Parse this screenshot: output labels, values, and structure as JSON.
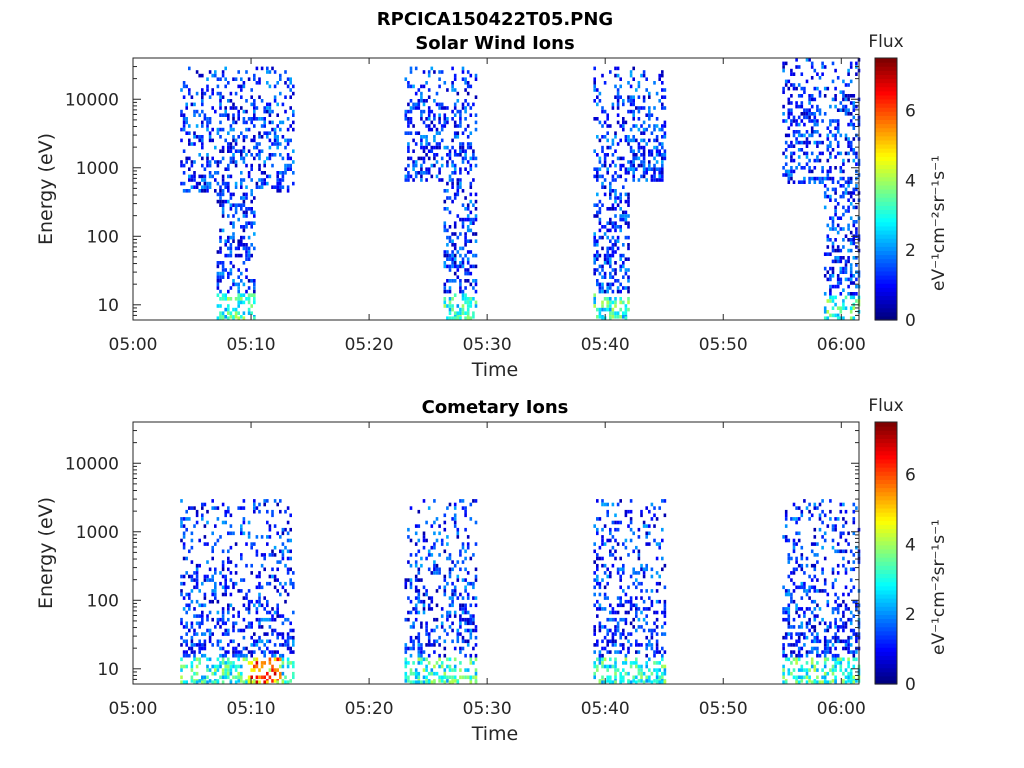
{
  "chart_data": {
    "title": "RPCICA150422T05.PNG",
    "panels": [
      {
        "type": "heatmap",
        "title": "Solar Wind Ions",
        "xlabel": "Time",
        "ylabel": "Energy (eV)",
        "x_ticks": [
          "05:00",
          "05:10",
          "05:20",
          "05:30",
          "05:40",
          "05:50",
          "06:00"
        ],
        "y_ticks": [
          "10",
          "100",
          "1000",
          "10000"
        ],
        "y_scale": "log",
        "ylim": [
          6,
          40000
        ],
        "xlim_minutes": [
          0,
          61.5
        ],
        "colorbar": {
          "label": "Flux",
          "units": "eV⁻¹cm⁻²sr⁻¹s⁻¹",
          "ticks": [
            "0",
            "2",
            "4",
            "6"
          ],
          "range": [
            0,
            7.5
          ]
        },
        "bursts": [
          {
            "start_min": 4.0,
            "end_min": 13.5,
            "emin": 470,
            "emax": 30000,
            "core_start": 7.0,
            "core_end": 10.2,
            "core_emin": 6,
            "intensity": "low"
          },
          {
            "start_min": 23.0,
            "end_min": 29.0,
            "emin": 650,
            "emax": 30000,
            "core_start": 26.2,
            "core_end": 29.0,
            "core_emin": 6,
            "intensity": "low"
          },
          {
            "start_min": 39.0,
            "end_min": 45.0,
            "emin": 650,
            "emax": 30000,
            "core_start": 39.0,
            "core_end": 42.0,
            "core_emin": 6,
            "intensity": "low"
          },
          {
            "start_min": 55.0,
            "end_min": 61.5,
            "emin": 650,
            "emax": 40000,
            "core_start": 58.5,
            "core_end": 61.5,
            "core_emin": 6,
            "intensity": "low"
          }
        ]
      },
      {
        "type": "heatmap",
        "title": "Cometary Ions",
        "xlabel": "Time",
        "ylabel": "Energy (eV)",
        "x_ticks": [
          "05:00",
          "05:10",
          "05:20",
          "05:30",
          "05:40",
          "05:50",
          "06:00"
        ],
        "y_ticks": [
          "10",
          "100",
          "1000",
          "10000"
        ],
        "y_scale": "log",
        "ylim": [
          6,
          40000
        ],
        "xlim_minutes": [
          0,
          61.5
        ],
        "colorbar": {
          "label": "Flux",
          "units": "eV⁻¹cm⁻²sr⁻¹s⁻¹",
          "ticks": [
            "0",
            "2",
            "4",
            "6"
          ],
          "range": [
            0,
            7.5
          ]
        },
        "bursts": [
          {
            "start_min": 4.0,
            "end_min": 13.5,
            "emin": 6,
            "emax": 3000,
            "peak_min": 11.0,
            "peak_value": 7.0,
            "intensity": "medium"
          },
          {
            "start_min": 23.0,
            "end_min": 29.0,
            "emin": 6,
            "emax": 3000,
            "intensity": "low"
          },
          {
            "start_min": 39.0,
            "end_min": 45.0,
            "emin": 6,
            "emax": 3000,
            "intensity": "low"
          },
          {
            "start_min": 55.0,
            "end_min": 61.5,
            "emin": 6,
            "emax": 3000,
            "intensity": "low"
          }
        ]
      }
    ]
  }
}
